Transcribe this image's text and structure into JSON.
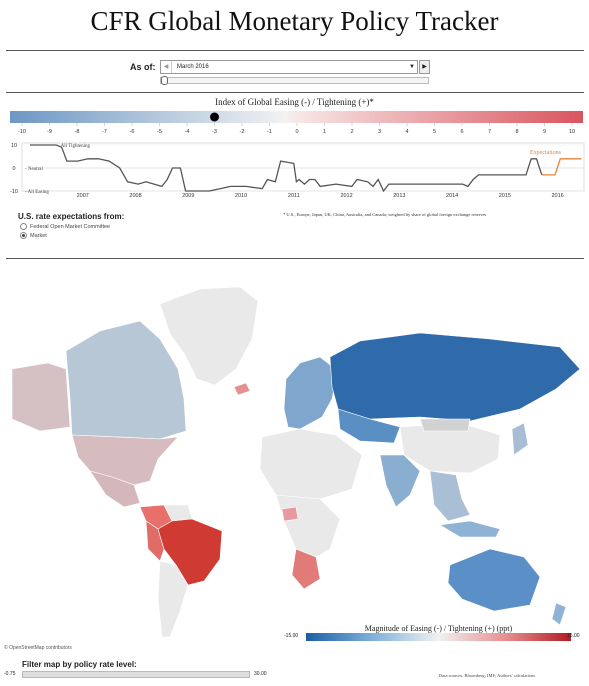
{
  "title": "CFR Global Monetary Policy Tracker",
  "controls": {
    "as_of_label": "As of:",
    "as_of_value": "March 2016",
    "index_title": "Index of Global Easing (-) / Tightening (+)*",
    "us_rate_label": "U.S. rate expectations from:",
    "options": [
      "Federal Open Market Committee",
      "Market"
    ],
    "selected_option": "Market",
    "filter_label": "Filter map by policy rate level:",
    "filter_min": "-0.75",
    "filter_max": "30.00"
  },
  "footnote": "* U.S., Europe, Japan, UK, China, Australia, and Canada; weighted by share of global foreign exchange reserves",
  "source": "Data sources: Bloomberg; IMF; Authors' calculations",
  "osm": "© OpenStreetMap contributors",
  "chart_data": [
    {
      "type": "area",
      "title": "Index of Global Easing (-) / Tightening (+)*",
      "categories": [
        "-10",
        "-9",
        "-8",
        "-7",
        "-6",
        "-5",
        "-4",
        "-3",
        "-2",
        "-1",
        "0",
        "1",
        "2",
        "3",
        "4",
        "5",
        "6",
        "7",
        "8",
        "9",
        "10"
      ],
      "current_value": -3,
      "colors": {
        "low": "#6d97c4",
        "mid": "#f2f2f2",
        "high": "#d9545e"
      }
    },
    {
      "type": "line",
      "xlabel": "",
      "ylabel": "",
      "ylim": [
        -10,
        10
      ],
      "xlim": [
        2006.5,
        2017.0
      ],
      "y_ticks": [
        "10",
        "0",
        "-10"
      ],
      "y_ticks_values": [
        10,
        0,
        -10
      ],
      "x_ticks": [
        "2007",
        "2008",
        "2009",
        "2010",
        "2011",
        "2012",
        "2013",
        "2014",
        "2015",
        "2016"
      ],
      "reference_labels": [
        "All Tightening",
        "Neutral",
        "All Easing"
      ],
      "series": [
        {
          "name": "",
          "color": "#555555",
          "points": [
            [
              2006.5,
              10
            ],
            [
              2007.0,
              10
            ],
            [
              2007.1,
              9
            ],
            [
              2007.2,
              3
            ],
            [
              2007.4,
              3
            ],
            [
              2007.6,
              4
            ],
            [
              2007.8,
              4
            ],
            [
              2008.0,
              3
            ],
            [
              2008.2,
              0
            ],
            [
              2008.35,
              -6
            ],
            [
              2008.55,
              -7
            ],
            [
              2008.7,
              -6
            ],
            [
              2008.85,
              -7
            ],
            [
              2009.0,
              -8
            ],
            [
              2009.1,
              -5
            ],
            [
              2009.2,
              0
            ],
            [
              2009.35,
              0
            ],
            [
              2009.45,
              -10
            ],
            [
              2009.9,
              -10
            ],
            [
              2010.1,
              -9
            ],
            [
              2010.3,
              -8
            ],
            [
              2010.6,
              -8
            ],
            [
              2010.9,
              -9
            ],
            [
              2011.0,
              -5
            ],
            [
              2011.15,
              -6
            ],
            [
              2011.25,
              3
            ],
            [
              2011.5,
              2
            ],
            [
              2011.55,
              -6
            ],
            [
              2011.6,
              -5
            ],
            [
              2011.7,
              -7
            ],
            [
              2011.8,
              -5
            ],
            [
              2011.9,
              -5
            ],
            [
              2012.0,
              -8
            ],
            [
              2012.3,
              -7
            ],
            [
              2012.6,
              -8
            ],
            [
              2012.7,
              -5
            ],
            [
              2012.9,
              -6
            ],
            [
              2013.0,
              -8
            ],
            [
              2013.1,
              -5
            ],
            [
              2013.2,
              -10
            ],
            [
              2013.3,
              -7
            ],
            [
              2013.4,
              -7
            ],
            [
              2014.0,
              -7
            ],
            [
              2014.5,
              -7
            ],
            [
              2014.7,
              -7
            ],
            [
              2014.8,
              -8
            ],
            [
              2014.9,
              -5
            ],
            [
              2015.0,
              -3
            ],
            [
              2015.3,
              -3
            ],
            [
              2015.7,
              -3
            ],
            [
              2015.9,
              -3
            ],
            [
              2016.0,
              4
            ],
            [
              2016.1,
              4
            ],
            [
              2016.2,
              -3
            ]
          ]
        },
        {
          "name": "Expectations",
          "color": "#e8823a",
          "points": [
            [
              2016.2,
              -3
            ],
            [
              2016.35,
              -3
            ],
            [
              2016.45,
              -3
            ],
            [
              2016.55,
              4
            ],
            [
              2016.95,
              4
            ]
          ]
        }
      ]
    }
  ]
}
